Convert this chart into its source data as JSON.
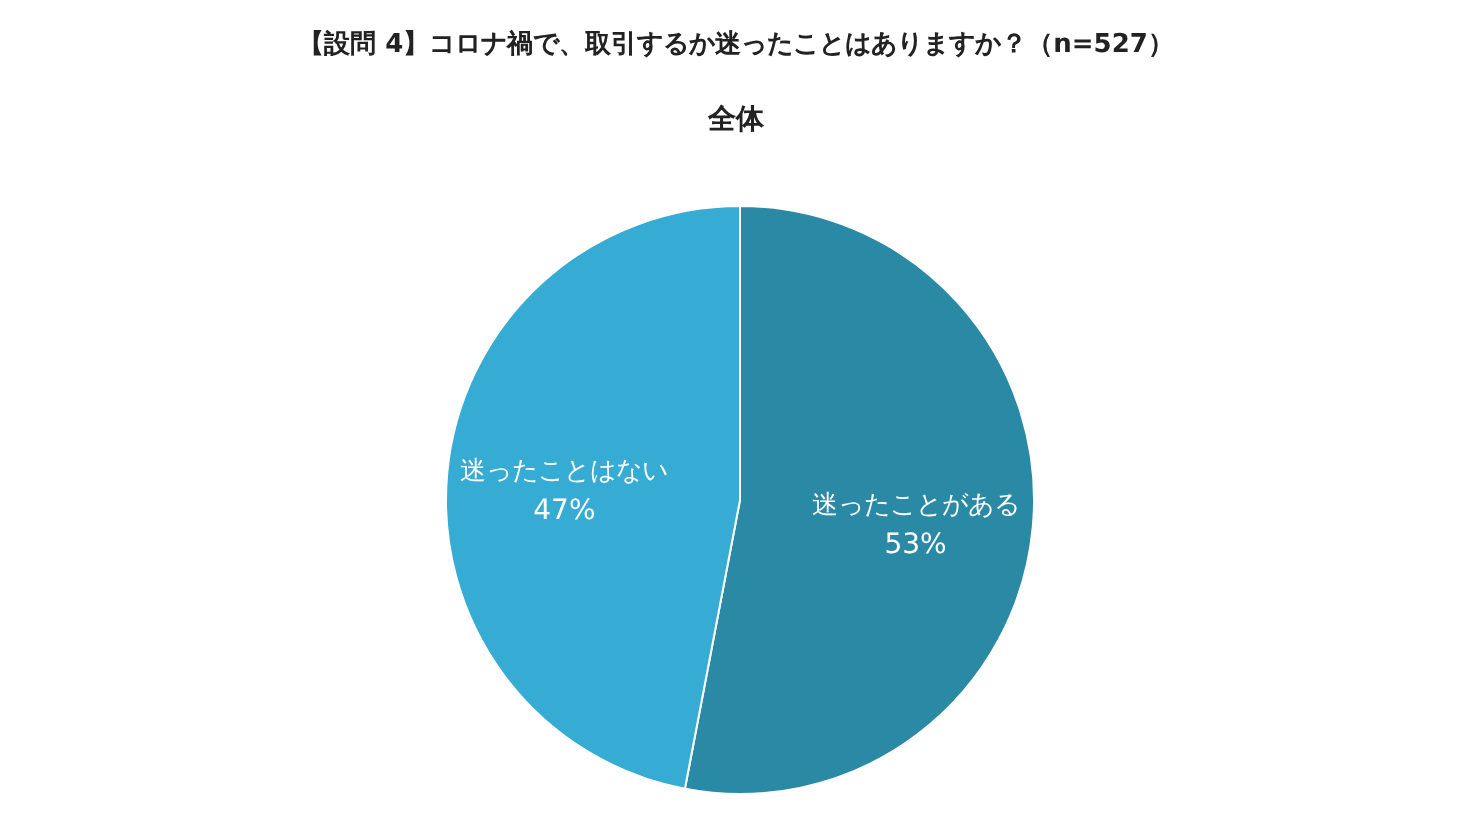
{
  "chart_data": {
    "type": "pie",
    "title": "【設問 4】コロナ禍で、取引するか迷ったことはありますか？（n=527）",
    "subtitle": "全体",
    "categories": [
      "迷ったことがある",
      "迷ったことはない"
    ],
    "values": [
      53,
      47
    ],
    "colors": [
      "#2a89a5",
      "#36acd4"
    ],
    "value_labels": [
      "53%",
      "47%"
    ]
  }
}
